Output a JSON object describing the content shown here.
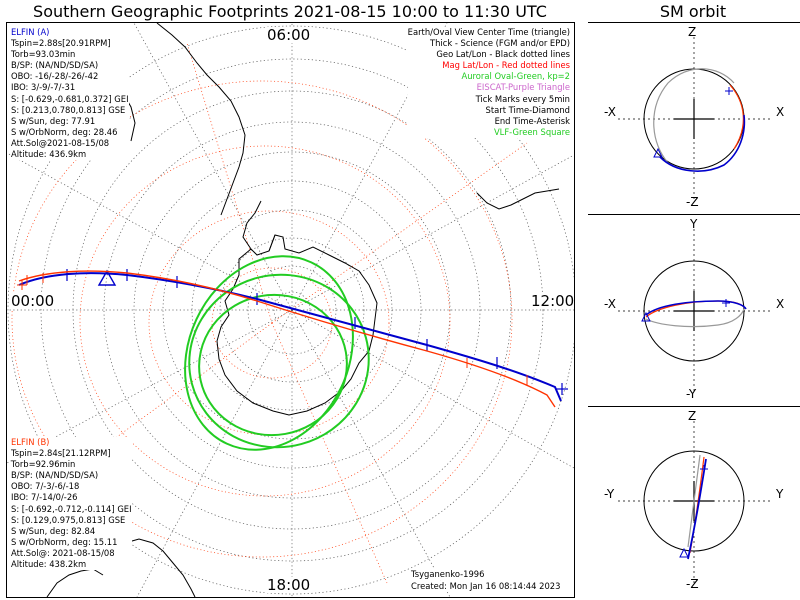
{
  "title": "Southern Geographic Footprints 2021-08-15 10:00 to 11:30 UTC",
  "orbit_title": "SM orbit",
  "hours": {
    "top": "06:00",
    "left": "00:00",
    "right": "12:00",
    "bottom": "18:00"
  },
  "elfin_a": {
    "name": "ELFIN (A)",
    "color": "#0000cc",
    "lines": [
      "Tspin=2.88s[20.91RPM]",
      "Torb=93.03min",
      "B/SP: (NA/ND/SD/SA)",
      "OBO: -16/-28/-26/-42",
      "IBO: 3/-9/-7/-31",
      "S: [-0.629,-0.681,0.372] GEI",
      "S: [0.213,0.780,0.813] GSE",
      "S w/Sun, deg: 77.91",
      "S w/OrbNorm, deg: 28.46",
      "Att.Sol@2021-08-15/08",
      "Altitude: 436.9km"
    ]
  },
  "elfin_b": {
    "name": "ELFIN (B)",
    "color": "#ff3300",
    "lines": [
      "Tspin=2.84s[21.12RPM]",
      "Torb=92.96min",
      "B/SP: (NA/ND/SD/SA)",
      "OBO: 7/-3/-6/-18",
      "IBO: 7/-14/0/-26",
      "S: [-0.692,-0.712,-0.114] GEI",
      "S: [0.129,0.975,0.813] GSE",
      "S w/Sun, deg: 82.84",
      "S w/OrbNorm, deg: 15.11",
      "Att.Sol@: 2021-08-15/08",
      "Altitude: 438.2km"
    ]
  },
  "legend": [
    {
      "text": "Earth/Oval View Center Time (triangle)",
      "color": "#000000"
    },
    {
      "text": "Thick - Science (FGM and/or EPD)",
      "color": "#000000"
    },
    {
      "text": "Geo Lat/Lon - Black dotted lines",
      "color": "#000000"
    },
    {
      "text": "Mag Lat/Lon - Red dotted lines",
      "color": "#ff0000"
    },
    {
      "text": "Auroral Oval-Green, kp=2",
      "color": "#22cc22"
    },
    {
      "text": "EISCAT-Purple Triangle",
      "color": "#cc66cc"
    },
    {
      "text": "Tick Marks every 5min",
      "color": "#000000"
    },
    {
      "text": "Start Time-Diamond",
      "color": "#000000"
    },
    {
      "text": "End Time-Asterisk",
      "color": "#000000"
    },
    {
      "text": "VLF-Green Square",
      "color": "#22cc22"
    }
  ],
  "footer": {
    "model": "Tsyganenko-1996",
    "created": "Created: Mon Jan 16 08:14:44 2023"
  },
  "panels": [
    {
      "top": "Z",
      "bottom": "-Z",
      "left": "-X",
      "right": "X"
    },
    {
      "top": "Y",
      "bottom": "-Y",
      "left": "-X",
      "right": "X"
    },
    {
      "top": "Z",
      "bottom": "-Z",
      "left": "-Y",
      "right": "Y"
    }
  ],
  "colors": {
    "trace_a": "#0000cc",
    "trace_b": "#ff3300",
    "auroral_oval": "#22cc22",
    "mag_grid": "#ff3300",
    "geo_grid": "#000000"
  }
}
